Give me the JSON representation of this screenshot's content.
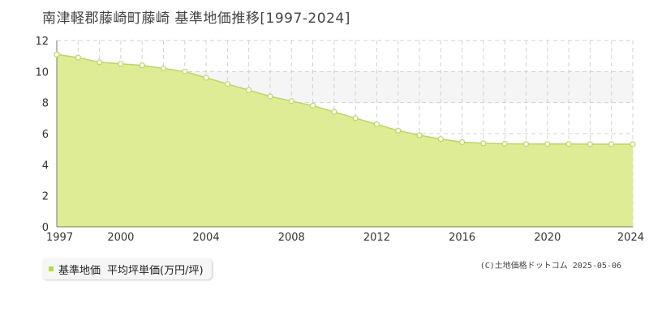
{
  "title": "南津軽郡藤崎町藤崎 基準地価推移[1997-2024]",
  "legend": {
    "name": "基準地価",
    "unit": "平均坪単価(万円/坪)"
  },
  "credit": "(C)土地価格ドットコム 2025-05-06",
  "colors": {
    "fill": "#dcec8f",
    "line": "#b7dc4a",
    "point_fill": "#ffffff",
    "band": "#f5f5f5",
    "grid": "#d2d2d2"
  },
  "chart_data": {
    "type": "area",
    "x": [
      1997,
      1998,
      1999,
      2000,
      2001,
      2002,
      2003,
      2004,
      2005,
      2006,
      2007,
      2008,
      2009,
      2010,
      2011,
      2012,
      2013,
      2014,
      2015,
      2016,
      2017,
      2018,
      2019,
      2020,
      2021,
      2022,
      2023,
      2024
    ],
    "series": [
      {
        "name": "基準地価",
        "values": [
          11.1,
          10.9,
          10.6,
          10.5,
          10.4,
          10.2,
          10.0,
          9.6,
          9.2,
          8.8,
          8.4,
          8.1,
          7.8,
          7.4,
          7.0,
          6.6,
          6.2,
          5.9,
          5.65,
          5.45,
          5.38,
          5.35,
          5.33,
          5.33,
          5.33,
          5.32,
          5.32,
          5.32
        ]
      }
    ],
    "xticks": [
      1997,
      2000,
      2004,
      2008,
      2012,
      2016,
      2020,
      2024
    ],
    "yticks": [
      0,
      2,
      4,
      6,
      8,
      10,
      12
    ],
    "xlim": [
      1997,
      2024
    ],
    "ylim": [
      0,
      12
    ],
    "shaded_band": [
      8,
      10
    ],
    "grid": true
  }
}
